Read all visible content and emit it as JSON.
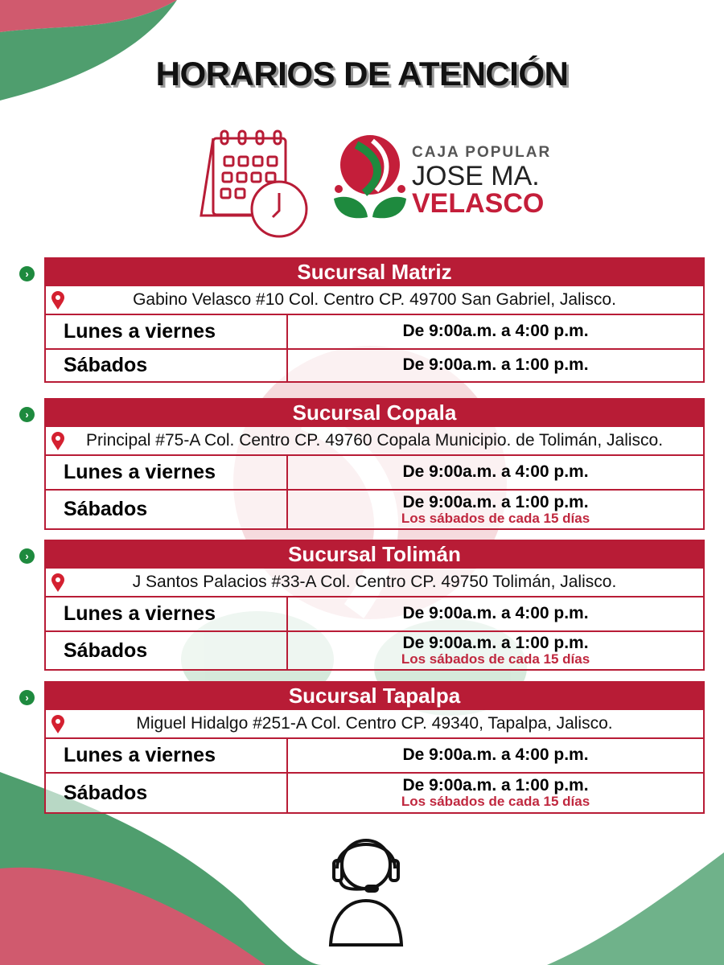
{
  "title": "HORARIOS DE ATENCIÓN",
  "logo": {
    "line1": "CAJA POPULAR",
    "line2": "JOSE MA.",
    "line3": "VELASCO"
  },
  "colors": {
    "red": "#b81c36",
    "green": "#1e8a3e"
  },
  "branches": [
    {
      "name": "Sucursal Matriz",
      "address": "Gabino Velasco #10 Col. Centro CP. 49700 San Gabriel, Jalisco.",
      "weekday_label": "Lunes a viernes",
      "weekday_hours": "De 9:00a.m. a 4:00 p.m.",
      "saturday_label": "Sábados",
      "saturday_hours": "De 9:00a.m. a 1:00 p.m.",
      "note": ""
    },
    {
      "name": "Sucursal Copala",
      "address": "Principal #75-A Col. Centro CP. 49760 Copala Municipio. de Tolimán, Jalisco.",
      "weekday_label": "Lunes a viernes",
      "weekday_hours": "De 9:00a.m. a 4:00 p.m.",
      "saturday_label": "Sábados",
      "saturday_hours": "De 9:00a.m. a 1:00 p.m.",
      "note": "Los sábados de cada 15 días"
    },
    {
      "name": "Sucursal Tolimán",
      "address": "J Santos Palacios #33-A Col. Centro CP. 49750 Tolimán, Jalisco.",
      "weekday_label": "Lunes a viernes",
      "weekday_hours": "De 9:00a.m. a 4:00 p.m.",
      "saturday_label": "Sábados",
      "saturday_hours": "De 9:00a.m. a 1:00 p.m.",
      "note": "Los sábados de cada 15 días"
    },
    {
      "name": "Sucursal Tapalpa",
      "address": "Miguel Hidalgo #251-A Col. Centro CP. 49340, Tapalpa, Jalisco.",
      "weekday_label": "Lunes a viernes",
      "weekday_hours": "De 9:00a.m. a 4:00 p.m.",
      "saturday_label": "Sábados",
      "saturday_hours": "De 9:00a.m. a 1:00 p.m.",
      "note": "Los sábados de cada 15 días"
    }
  ]
}
